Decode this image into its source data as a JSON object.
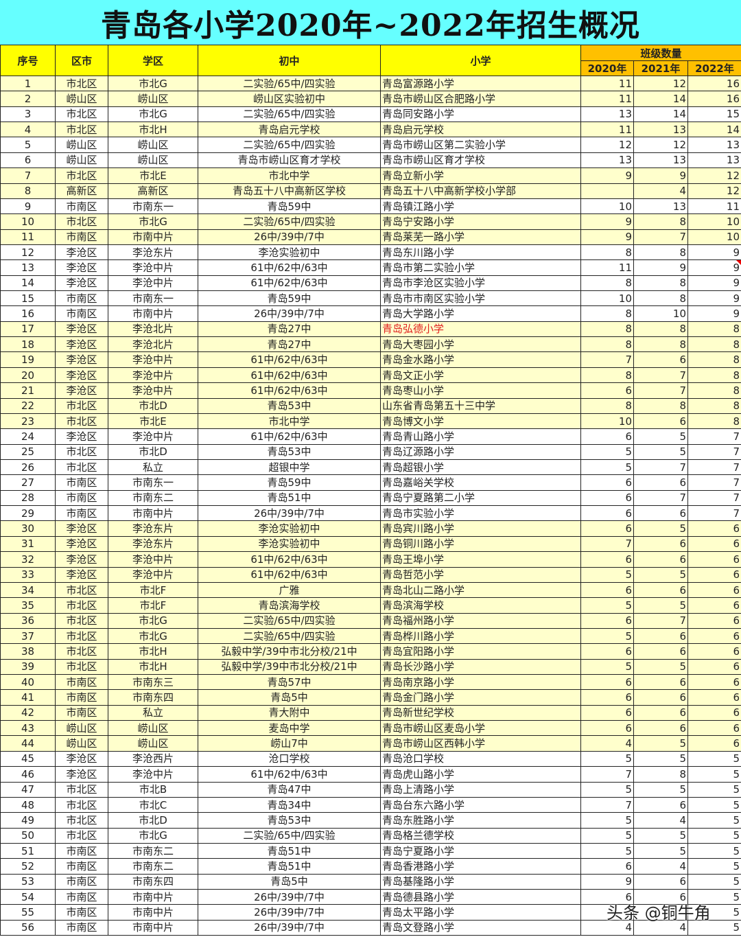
{
  "title": "青岛各小学2020年~2022年招生概况",
  "headers": {
    "no": "序号",
    "district": "区市",
    "zone": "学区",
    "middle": "初中",
    "primary": "小学",
    "group": "班级数量",
    "y2020": "2020年",
    "y2021": "2021年",
    "y2022": "2022年"
  },
  "colors": {
    "title_bg": "#66ffff",
    "header_bg": "#ffff00",
    "group_bg": "#ffc000",
    "highlight_row": "#ffffcc",
    "red_text": "#e02020"
  },
  "highlighted_rows": [
    1,
    2,
    4,
    7,
    8,
    10,
    11,
    17,
    18,
    19,
    20,
    21,
    22,
    23,
    30,
    31,
    32,
    33,
    34,
    35,
    36,
    37,
    38,
    39,
    40,
    41,
    42,
    43,
    44
  ],
  "red_text_rows": [
    17
  ],
  "comment_flag_rows": [
    13
  ],
  "rows": [
    [
      "1",
      "市北区",
      "市北G",
      "二实验/65中/四实验",
      "青岛富源路小学",
      "11",
      "12",
      "16"
    ],
    [
      "2",
      "崂山区",
      "崂山区",
      "崂山区实验初中",
      "青岛市崂山区合肥路小学",
      "11",
      "14",
      "16"
    ],
    [
      "3",
      "市北区",
      "市北G",
      "二实验/65中/四实验",
      "青岛同安路小学",
      "13",
      "14",
      "15"
    ],
    [
      "4",
      "市北区",
      "市北H",
      "青岛启元学校",
      "青岛启元学校",
      "11",
      "13",
      "14"
    ],
    [
      "5",
      "崂山区",
      "崂山区",
      "二实验/65中/四实验",
      "青岛市崂山区第二实验小学",
      "12",
      "12",
      "13"
    ],
    [
      "6",
      "崂山区",
      "崂山区",
      "青岛市崂山区育才学校",
      "青岛市崂山区育才学校",
      "13",
      "13",
      "13"
    ],
    [
      "7",
      "市北区",
      "市北E",
      "市北中学",
      "青岛立新小学",
      "9",
      "9",
      "12"
    ],
    [
      "8",
      "高新区",
      "高新区",
      "青岛五十八中高新区学校",
      "青岛五十八中高新学校小学部",
      "",
      "4",
      "12"
    ],
    [
      "9",
      "市南区",
      "市南东一",
      "青岛59中",
      "青岛镇江路小学",
      "10",
      "13",
      "11"
    ],
    [
      "10",
      "市北区",
      "市北G",
      "二实验/65中/四实验",
      "青岛宁安路小学",
      "9",
      "8",
      "10"
    ],
    [
      "11",
      "市南区",
      "市南中片",
      "26中/39中/7中",
      "青岛莱芜一路小学",
      "9",
      "7",
      "10"
    ],
    [
      "12",
      "李沧区",
      "李沧东片",
      "李沧实验初中",
      "青岛东川路小学",
      "8",
      "8",
      "9"
    ],
    [
      "13",
      "李沧区",
      "李沧中片",
      "61中/62中/63中",
      "青岛市第二实验小学",
      "11",
      "9",
      "9"
    ],
    [
      "14",
      "李沧区",
      "李沧中片",
      "61中/62中/63中",
      "青岛市李沧区实验小学",
      "8",
      "8",
      "9"
    ],
    [
      "15",
      "市南区",
      "市南东一",
      "青岛59中",
      "青岛市市南区实验小学",
      "10",
      "8",
      "9"
    ],
    [
      "16",
      "市南区",
      "市南中片",
      "26中/39中/7中",
      "青岛大学路小学",
      "8",
      "10",
      "9"
    ],
    [
      "17",
      "李沧区",
      "李沧北片",
      "青岛27中",
      "青岛弘德小学",
      "8",
      "8",
      "8"
    ],
    [
      "18",
      "李沧区",
      "李沧北片",
      "青岛27中",
      "青岛大枣园小学",
      "8",
      "8",
      "8"
    ],
    [
      "19",
      "李沧区",
      "李沧中片",
      "61中/62中/63中",
      "青岛金水路小学",
      "7",
      "6",
      "8"
    ],
    [
      "20",
      "李沧区",
      "李沧中片",
      "61中/62中/63中",
      "青岛文正小学",
      "8",
      "7",
      "8"
    ],
    [
      "21",
      "李沧区",
      "李沧中片",
      "61中/62中/63中",
      "青岛枣山小学",
      "6",
      "7",
      "8"
    ],
    [
      "22",
      "市北区",
      "市北D",
      "青岛53中",
      "山东省青岛第五十三中学",
      "8",
      "8",
      "8"
    ],
    [
      "23",
      "市北区",
      "市北E",
      "市北中学",
      "青岛博文小学",
      "10",
      "6",
      "8"
    ],
    [
      "24",
      "李沧区",
      "李沧中片",
      "61中/62中/63中",
      "青岛青山路小学",
      "6",
      "5",
      "7"
    ],
    [
      "25",
      "市北区",
      "市北D",
      "青岛53中",
      "青岛辽源路小学",
      "5",
      "5",
      "7"
    ],
    [
      "26",
      "市北区",
      "私立",
      "超银中学",
      "青岛超银小学",
      "5",
      "7",
      "7"
    ],
    [
      "27",
      "市南区",
      "市南东一",
      "青岛59中",
      "青岛嘉峪关学校",
      "6",
      "6",
      "7"
    ],
    [
      "28",
      "市南区",
      "市南东二",
      "青岛51中",
      "青岛宁夏路第二小学",
      "6",
      "7",
      "7"
    ],
    [
      "29",
      "市南区",
      "市南中片",
      "26中/39中/7中",
      "青岛市实验小学",
      "6",
      "6",
      "7"
    ],
    [
      "30",
      "李沧区",
      "李沧东片",
      "李沧实验初中",
      "青岛宾川路小学",
      "6",
      "5",
      "6"
    ],
    [
      "31",
      "李沧区",
      "李沧东片",
      "李沧实验初中",
      "青岛铜川路小学",
      "7",
      "6",
      "6"
    ],
    [
      "32",
      "李沧区",
      "李沧中片",
      "61中/62中/63中",
      "青岛王埠小学",
      "6",
      "6",
      "6"
    ],
    [
      "33",
      "李沧区",
      "李沧中片",
      "61中/62中/63中",
      "青岛哲范小学",
      "5",
      "5",
      "6"
    ],
    [
      "34",
      "市北区",
      "市北F",
      "广雅",
      "青岛北山二路小学",
      "6",
      "6",
      "6"
    ],
    [
      "35",
      "市北区",
      "市北F",
      "青岛滨海学校",
      "青岛滨海学校",
      "5",
      "5",
      "6"
    ],
    [
      "36",
      "市北区",
      "市北G",
      "二实验/65中/四实验",
      "青岛福州路小学",
      "6",
      "7",
      "6"
    ],
    [
      "37",
      "市北区",
      "市北G",
      "二实验/65中/四实验",
      "青岛桦川路小学",
      "5",
      "6",
      "6"
    ],
    [
      "38",
      "市北区",
      "市北H",
      "弘毅中学/39中市北分校/21中",
      "青岛宜阳路小学",
      "6",
      "6",
      "6"
    ],
    [
      "39",
      "市北区",
      "市北H",
      "弘毅中学/39中市北分校/21中",
      "青岛长沙路小学",
      "5",
      "5",
      "6"
    ],
    [
      "40",
      "市南区",
      "市南东三",
      "青岛57中",
      "青岛南京路小学",
      "6",
      "6",
      "6"
    ],
    [
      "41",
      "市南区",
      "市南东四",
      "青岛5中",
      "青岛金门路小学",
      "6",
      "6",
      "6"
    ],
    [
      "42",
      "市南区",
      "私立",
      "青大附中",
      "青岛新世纪学校",
      "6",
      "6",
      "6"
    ],
    [
      "43",
      "崂山区",
      "崂山区",
      "麦岛中学",
      "青岛市崂山区麦岛小学",
      "6",
      "6",
      "6"
    ],
    [
      "44",
      "崂山区",
      "崂山区",
      "崂山7中",
      "青岛市崂山区西韩小学",
      "4",
      "5",
      "6"
    ],
    [
      "45",
      "李沧区",
      "李沧西片",
      "沧口学校",
      "青岛沧口学校",
      "5",
      "5",
      "5"
    ],
    [
      "46",
      "李沧区",
      "李沧中片",
      "61中/62中/63中",
      "青岛虎山路小学",
      "7",
      "8",
      "5"
    ],
    [
      "47",
      "市北区",
      "市北B",
      "青岛47中",
      "青岛上清路小学",
      "5",
      "5",
      "5"
    ],
    [
      "48",
      "市北区",
      "市北C",
      "青岛34中",
      "青岛台东六路小学",
      "7",
      "6",
      "5"
    ],
    [
      "49",
      "市北区",
      "市北D",
      "青岛53中",
      "青岛东胜路小学",
      "5",
      "4",
      "5"
    ],
    [
      "50",
      "市北区",
      "市北G",
      "二实验/65中/四实验",
      "青岛格兰德学校",
      "5",
      "5",
      "5"
    ],
    [
      "51",
      "市南区",
      "市南东二",
      "青岛51中",
      "青岛宁夏路小学",
      "5",
      "5",
      "5"
    ],
    [
      "52",
      "市南区",
      "市南东二",
      "青岛51中",
      "青岛香港路小学",
      "6",
      "4",
      "5"
    ],
    [
      "53",
      "市南区",
      "市南东四",
      "青岛5中",
      "青岛基隆路小学",
      "9",
      "6",
      "5"
    ],
    [
      "54",
      "市南区",
      "市南中片",
      "26中/39中/7中",
      "青岛德县路小学",
      "6",
      "6",
      "5"
    ],
    [
      "55",
      "市南区",
      "市南中片",
      "26中/39中/7中",
      "青岛太平路小学",
      "",
      "",
      "5"
    ],
    [
      "56",
      "市南区",
      "市南中片",
      "26中/39中/7中",
      "青岛文登路小学",
      "4",
      "4",
      "5"
    ]
  ],
  "watermark": "头条 @铜牛角"
}
